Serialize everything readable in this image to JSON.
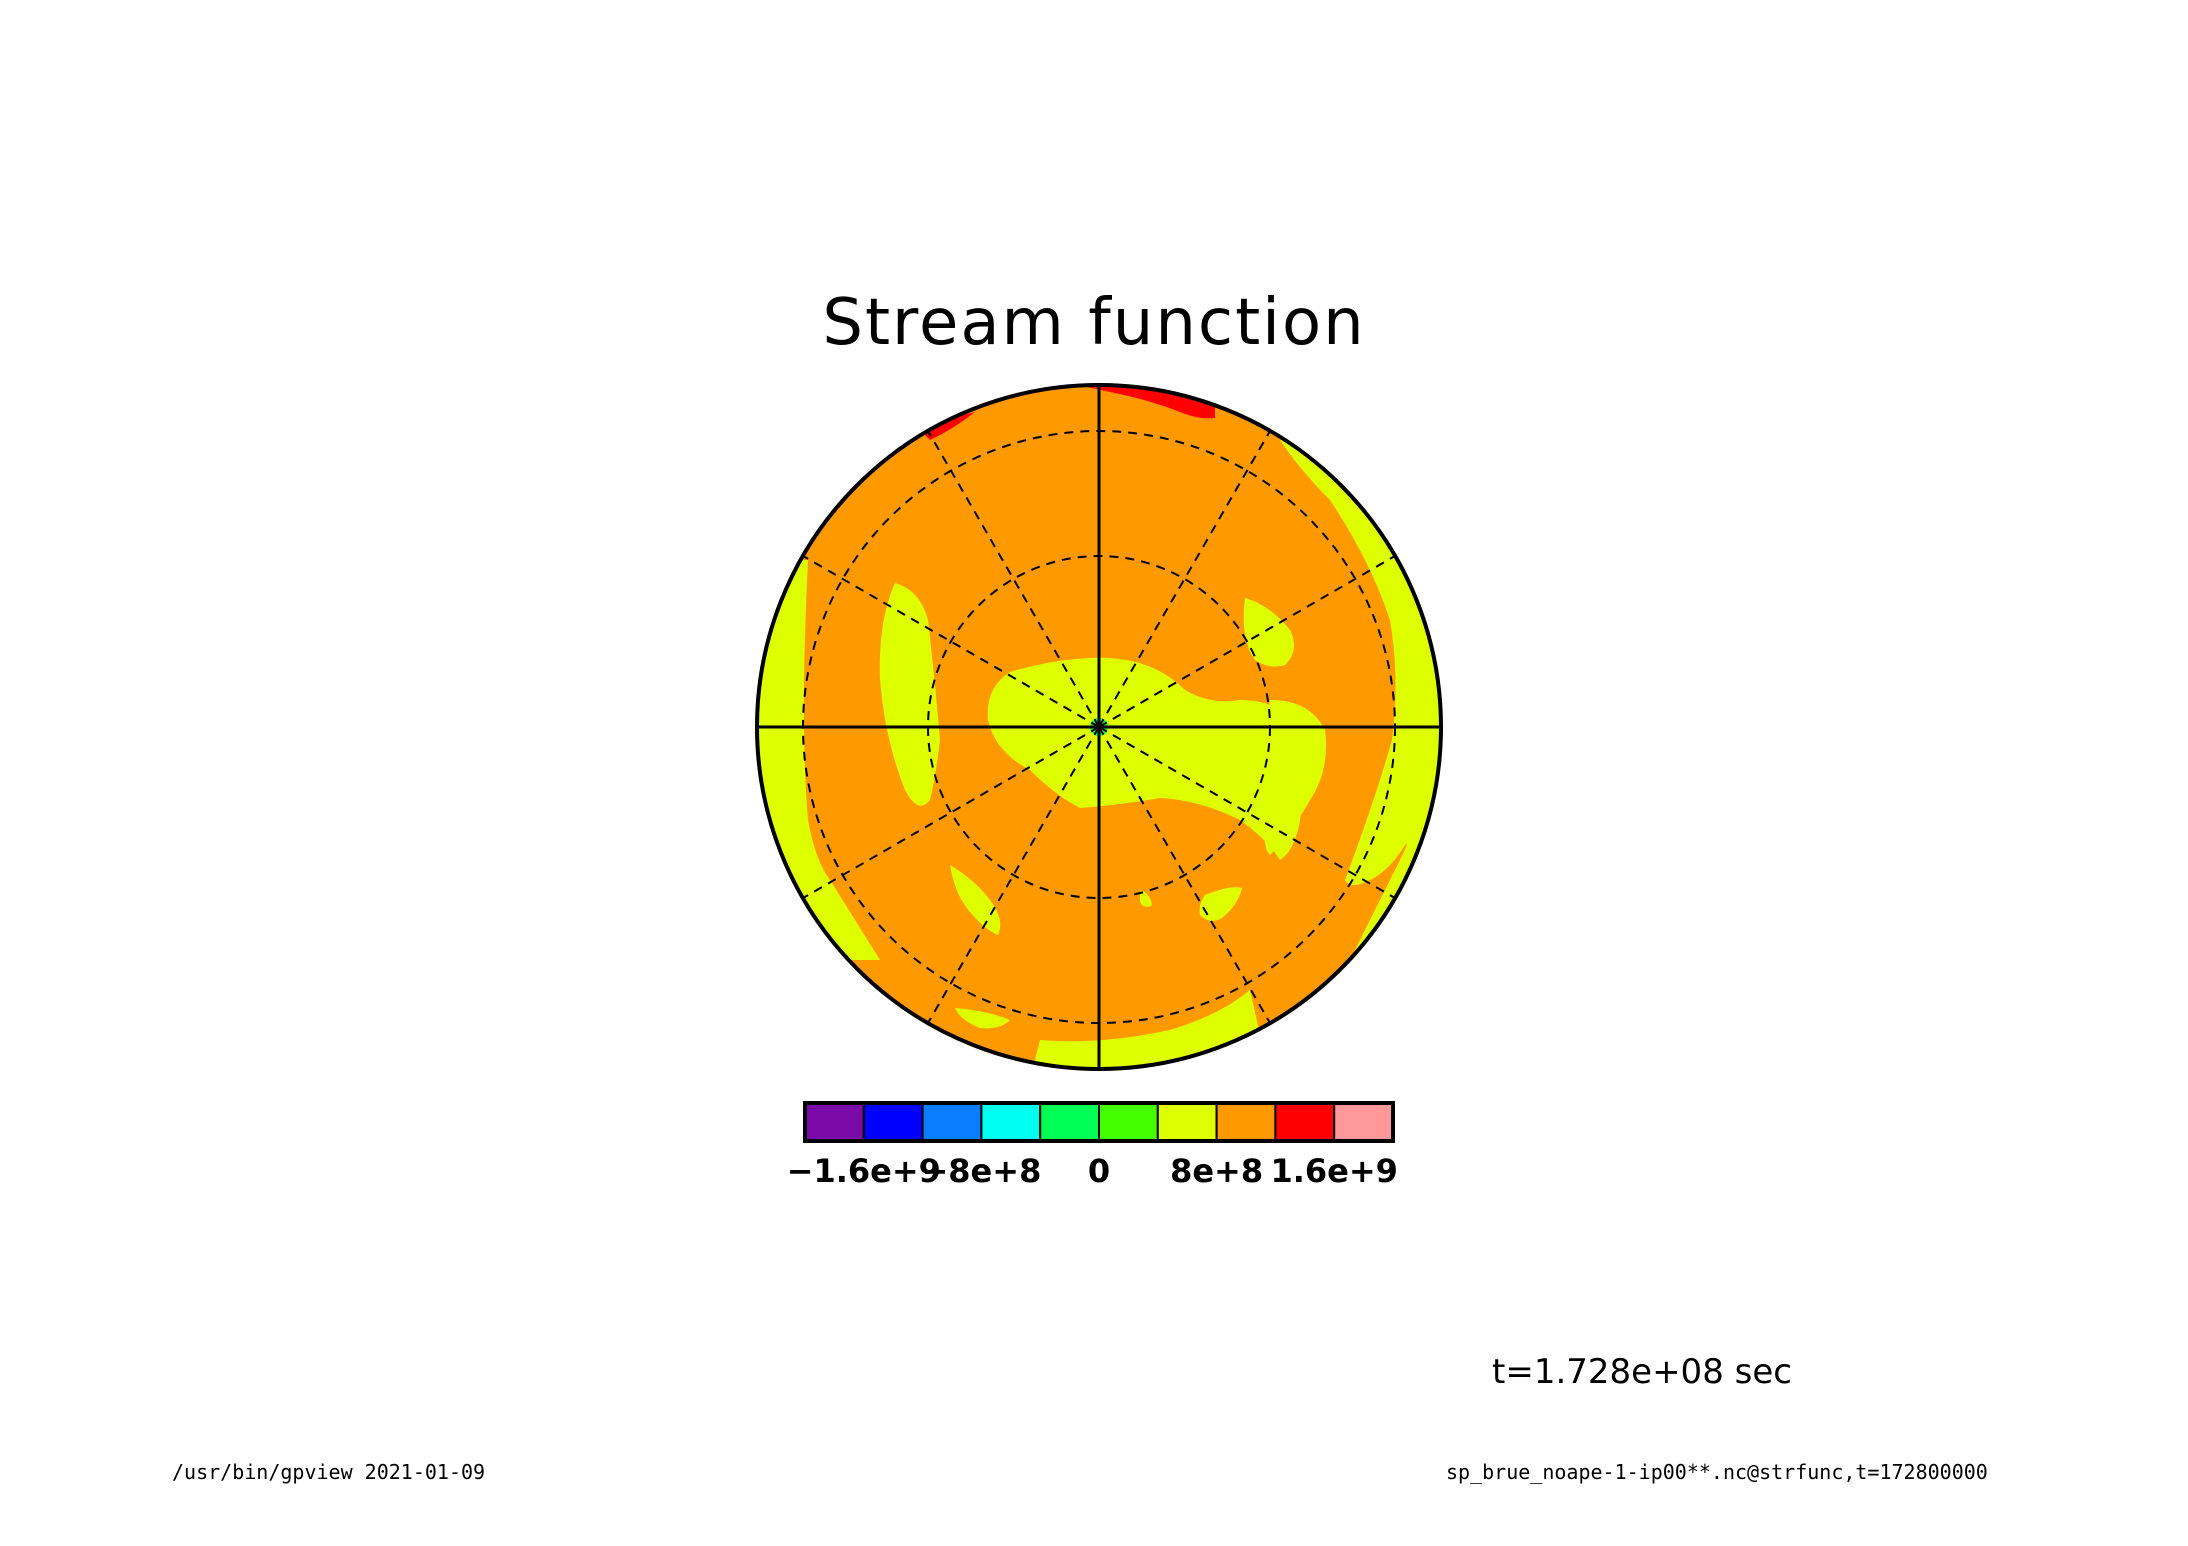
{
  "chart_data": {
    "type": "heatmap",
    "projection": "polar stereographic",
    "title": "Stream function",
    "time_label": "t=1.728e+08 sec",
    "colorbar": {
      "colors": [
        "#7b0aa8",
        "#0000ff",
        "#0a7dff",
        "#00ffee",
        "#00ff55",
        "#44ff00",
        "#ddff00",
        "#ff9900",
        "#ff0000",
        "#ff9999"
      ],
      "tick_labels": [
        "−1.6e+9",
        "−8e+8",
        "0",
        "8e+8",
        "1.6e+9"
      ],
      "tick_values": [
        -1600000000,
        -800000000,
        0,
        800000000,
        1600000000
      ],
      "bounds": [
        -2000000000,
        -1600000000,
        -1200000000,
        -800000000,
        -400000000,
        0,
        400000000,
        800000000,
        1200000000,
        1600000000,
        2000000000
      ]
    },
    "field_description": "dominant values 8e+8 to 1.2e+9 (orange) with patches of 4e+8 to 8e+8 (yellow) and a small 1.2e+9 to 1.6e+9 (red) patch near the top edge",
    "grid": true
  },
  "footer": {
    "left": "/usr/bin/gpview  2021-01-09",
    "right": "sp_brue_noape-1-ip00**.nc@strfunc,t=172800000"
  }
}
